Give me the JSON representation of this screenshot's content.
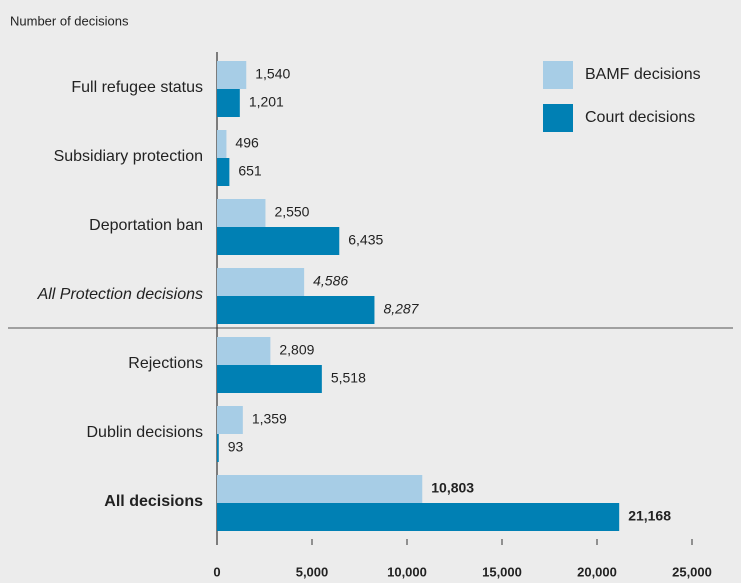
{
  "chart_data": {
    "type": "bar",
    "orientation": "horizontal",
    "y_axis_label": "Number of decisions",
    "categories": [
      "Full refugee status",
      "Subsidiary protection",
      "Deportation ban",
      "All Protection decisions",
      "Rejections",
      "Dublin decisions",
      "All decisions"
    ],
    "emphasis": [
      "normal",
      "normal",
      "normal",
      "italic",
      "normal",
      "normal",
      "bold"
    ],
    "series": [
      {
        "name": "BAMF decisions",
        "color": "#a7cde6",
        "values": [
          1540,
          496,
          2550,
          4586,
          2809,
          1359,
          10803
        ],
        "value_labels": [
          "1,540",
          "496",
          "2,550",
          "4,586",
          "2,809",
          "1,359",
          "10,803"
        ]
      },
      {
        "name": "Court decisions",
        "color": "#0080b4",
        "values": [
          1201,
          651,
          6435,
          8287,
          5518,
          93,
          21168
        ],
        "value_labels": [
          "1,201",
          "651",
          "6,435",
          "8,287",
          "5,518",
          "93",
          "21,168"
        ]
      }
    ],
    "xlim": [
      0,
      25000
    ],
    "xticks": [
      0,
      {
        "value": 5000,
        "label": "5,000"
      },
      {
        "value": 10000,
        "label": "10,000"
      },
      {
        "value": 15000,
        "label": "15,000"
      },
      {
        "value": 20000,
        "label": "20,000"
      },
      {
        "value": 25000,
        "label": "25,000"
      }
    ],
    "legend": "top-right"
  }
}
